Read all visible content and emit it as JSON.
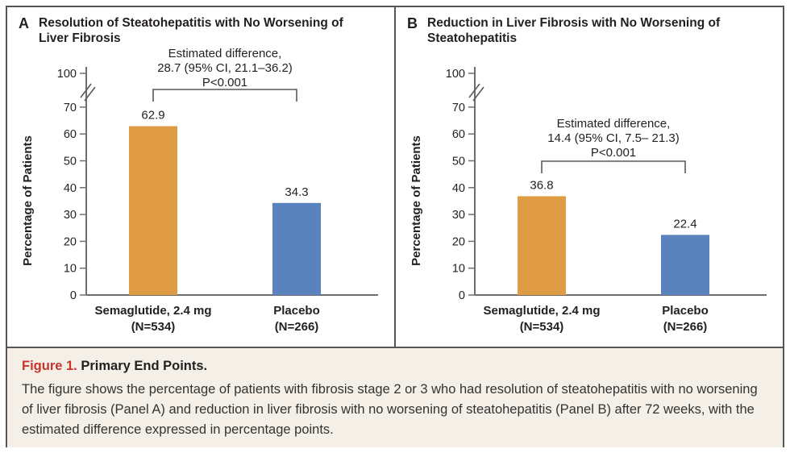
{
  "colors": {
    "semaglutide_bar": "#E09C44",
    "placebo_bar": "#5A83BE",
    "axis": "#6d6e71",
    "bracket": "#58595b",
    "text": "#231f20",
    "figure_label_red": "#c9332e",
    "caption_bg": "#f4f0e7",
    "frame_border": "#55565a"
  },
  "chart_data": [
    {
      "type": "bar",
      "panel_letter": "A",
      "title": "Resolution of Steatohepatitis with No Worsening of Liver Fibrosis",
      "ylabel": "Percentage of Patients",
      "yticks": [
        0,
        10,
        20,
        30,
        40,
        50,
        60,
        70
      ],
      "ybreak_upper_label": "100",
      "ylim_shown": [
        0,
        70
      ],
      "grid": false,
      "categories": [
        {
          "label": "Semaglutide, 2.4 mg",
          "n": "(N=534)"
        },
        {
          "label": "Placebo",
          "n": "(N=266)"
        }
      ],
      "values": [
        62.9,
        34.3
      ],
      "value_labels": [
        "62.9",
        "34.3"
      ],
      "annotation_lines": [
        "Estimated difference,",
        "28.7 (95% CI, 21.1–36.2)",
        "P<0.001"
      ]
    },
    {
      "type": "bar",
      "panel_letter": "B",
      "title": "Reduction in Liver Fibrosis with No Worsening of Steatohepatitis",
      "ylabel": "Percentage of Patients",
      "yticks": [
        0,
        10,
        20,
        30,
        40,
        50,
        60,
        70
      ],
      "ybreak_upper_label": "100",
      "ylim_shown": [
        0,
        70
      ],
      "grid": false,
      "categories": [
        {
          "label": "Semaglutide, 2.4 mg",
          "n": "(N=534)"
        },
        {
          "label": "Placebo",
          "n": "(N=266)"
        }
      ],
      "values": [
        36.8,
        22.4
      ],
      "value_labels": [
        "36.8",
        "22.4"
      ],
      "annotation_lines": [
        "Estimated difference,",
        "14.4 (95% CI, 7.5– 21.3)",
        "P<0.001"
      ]
    }
  ],
  "caption": {
    "fig_label": "Figure 1.",
    "fig_title": " Primary End Points.",
    "body": "The figure shows the percentage of patients with fibrosis stage 2 or 3 who had resolution of steatohepatitis with no worsening of liver fibrosis (Panel A) and reduction in liver fibrosis with no worsening of steatohepatitis (Panel B) after 72 weeks, with the estimated difference expressed in percentage points."
  }
}
